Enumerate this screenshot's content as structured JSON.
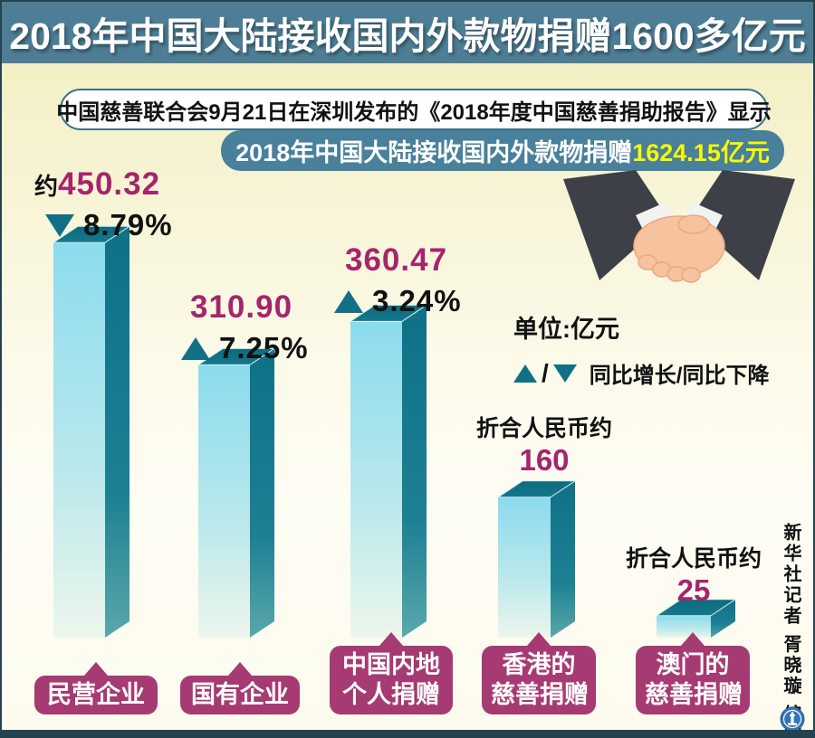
{
  "title": "2018年中国大陆接收国内外款物捐赠1600多亿元",
  "intro": "中国慈善联合会9月21日在深圳发布的《2018年度中国慈善捐助报告》显示",
  "banner": {
    "prefix": "2018年中国大陆接收国内外款物捐赠",
    "highlight": "1624.15亿元"
  },
  "legend": {
    "unit": "单位:亿元",
    "slash": "/",
    "up_down": "同比增长/同比下降"
  },
  "credit": "新华社记者 胥晓璇 编制",
  "colors": {
    "title_bar": "#4e7e95",
    "banner": "#49809b",
    "highlight_yellow": "#f8f800",
    "value_magenta": "#a5256d",
    "triangle_teal": "#127086",
    "bar_front_top": "#8bdbee",
    "bar_side": "#0e7187",
    "category_box": "#a63a72",
    "background_cream": "#f1edbd"
  },
  "chart_data": {
    "type": "bar",
    "title": "2018年中国大陆接收国内外款物捐赠1624.15亿元",
    "unit": "亿元",
    "total": 1624.15,
    "legend_note": "▲/▼ 同比增长/同比下降",
    "categories": [
      "民营企业",
      "国有企业",
      "中国内地个人捐赠",
      "香港的慈善捐赠",
      "澳门的慈善捐赠"
    ],
    "values": [
      450.32,
      310.9,
      360.47,
      160,
      25
    ],
    "changes_pct": [
      -8.79,
      7.25,
      3.24,
      null,
      null
    ],
    "bars": [
      {
        "category": "民营企业",
        "label_lines": [
          "民营企业"
        ],
        "value": 450.32,
        "display_value": "450.32",
        "prefix": "约",
        "change_pct": "8.79%",
        "change_direction": "down"
      },
      {
        "category": "国有企业",
        "label_lines": [
          "国有企业"
        ],
        "value": 310.9,
        "display_value": "310.90",
        "change_pct": "7.25%",
        "change_direction": "up"
      },
      {
        "category": "中国内地个人捐赠",
        "label_lines": [
          "中国内地",
          "个人捐赠"
        ],
        "value": 360.47,
        "display_value": "360.47",
        "change_pct": "3.24%",
        "change_direction": "up"
      },
      {
        "category": "香港的慈善捐赠",
        "label_lines": [
          "香港的",
          "慈善捐赠"
        ],
        "value": 160,
        "display_value": "160",
        "note": "折合人民币约"
      },
      {
        "category": "澳门的慈善捐赠",
        "label_lines": [
          "澳门的",
          "慈善捐赠"
        ],
        "value": 25,
        "display_value": "25",
        "note": "折合人民币约"
      }
    ]
  }
}
